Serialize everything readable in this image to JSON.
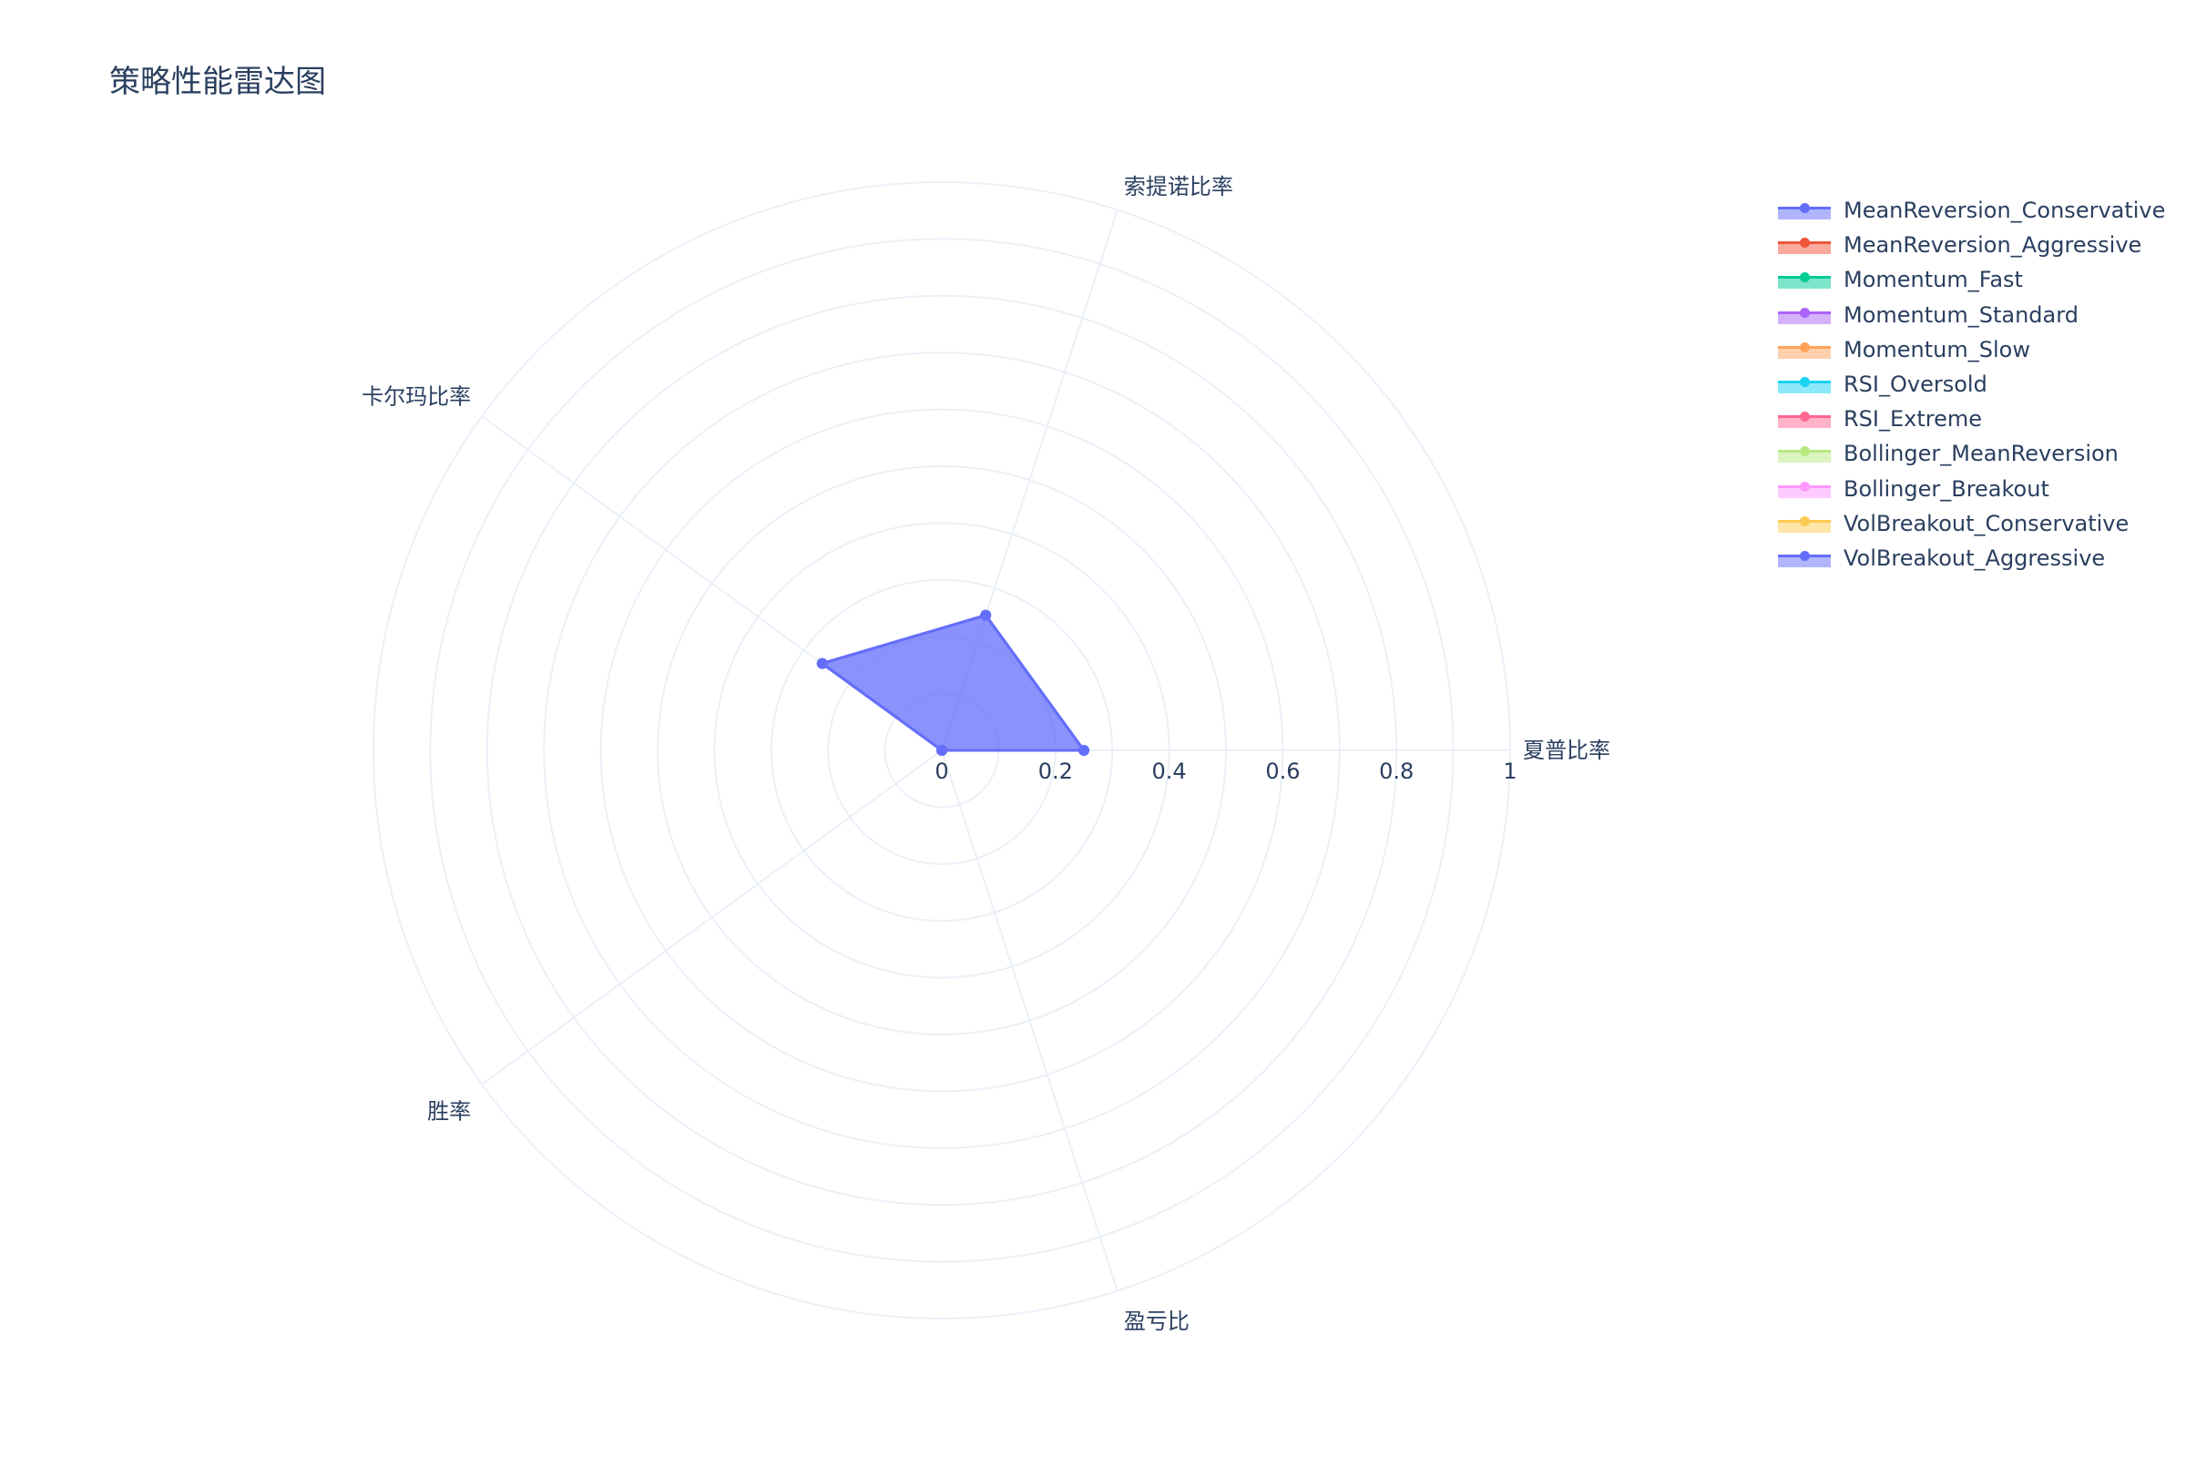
{
  "title": "策略性能雷达图",
  "chart_data": {
    "type": "radar",
    "axes": [
      "夏普比率",
      "索提诺比率",
      "卡尔玛比率",
      "胜率",
      "盈亏比"
    ],
    "radial_range": [
      0,
      1
    ],
    "radial_ticks": [
      "0",
      "0.2",
      "0.4",
      "0.6",
      "0.8",
      "1"
    ],
    "legend_position": "top-right",
    "series": [
      {
        "name": "MeanReversion_Conservative",
        "color": "#636efa",
        "values": [
          0.25,
          0.25,
          0.26,
          0.0,
          0.0
        ]
      },
      {
        "name": "MeanReversion_Aggressive",
        "color": "#EF553B",
        "values": [
          0,
          0,
          0,
          0,
          0
        ]
      },
      {
        "name": "Momentum_Fast",
        "color": "#00cc96",
        "values": [
          0,
          0,
          0,
          0,
          0
        ]
      },
      {
        "name": "Momentum_Standard",
        "color": "#ab63fa",
        "values": [
          0,
          0,
          0,
          0,
          0
        ]
      },
      {
        "name": "Momentum_Slow",
        "color": "#FFA15A",
        "values": [
          0,
          0,
          0,
          0,
          0
        ]
      },
      {
        "name": "RSI_Oversold",
        "color": "#19d3f3",
        "values": [
          0,
          0,
          0,
          0,
          0
        ]
      },
      {
        "name": "RSI_Extreme",
        "color": "#FF6692",
        "values": [
          0,
          0,
          0,
          0,
          0
        ]
      },
      {
        "name": "Bollinger_MeanReversion",
        "color": "#B6E880",
        "values": [
          0,
          0,
          0,
          0,
          0
        ]
      },
      {
        "name": "Bollinger_Breakout",
        "color": "#FF97FF",
        "values": [
          0,
          0,
          0,
          0,
          0
        ]
      },
      {
        "name": "VolBreakout_Conservative",
        "color": "#FECB52",
        "values": [
          0,
          0,
          0,
          0,
          0
        ]
      },
      {
        "name": "VolBreakout_Aggressive",
        "color": "#636efa",
        "values": [
          0.25,
          0.25,
          0.26,
          0.0,
          0.0
        ]
      }
    ]
  }
}
